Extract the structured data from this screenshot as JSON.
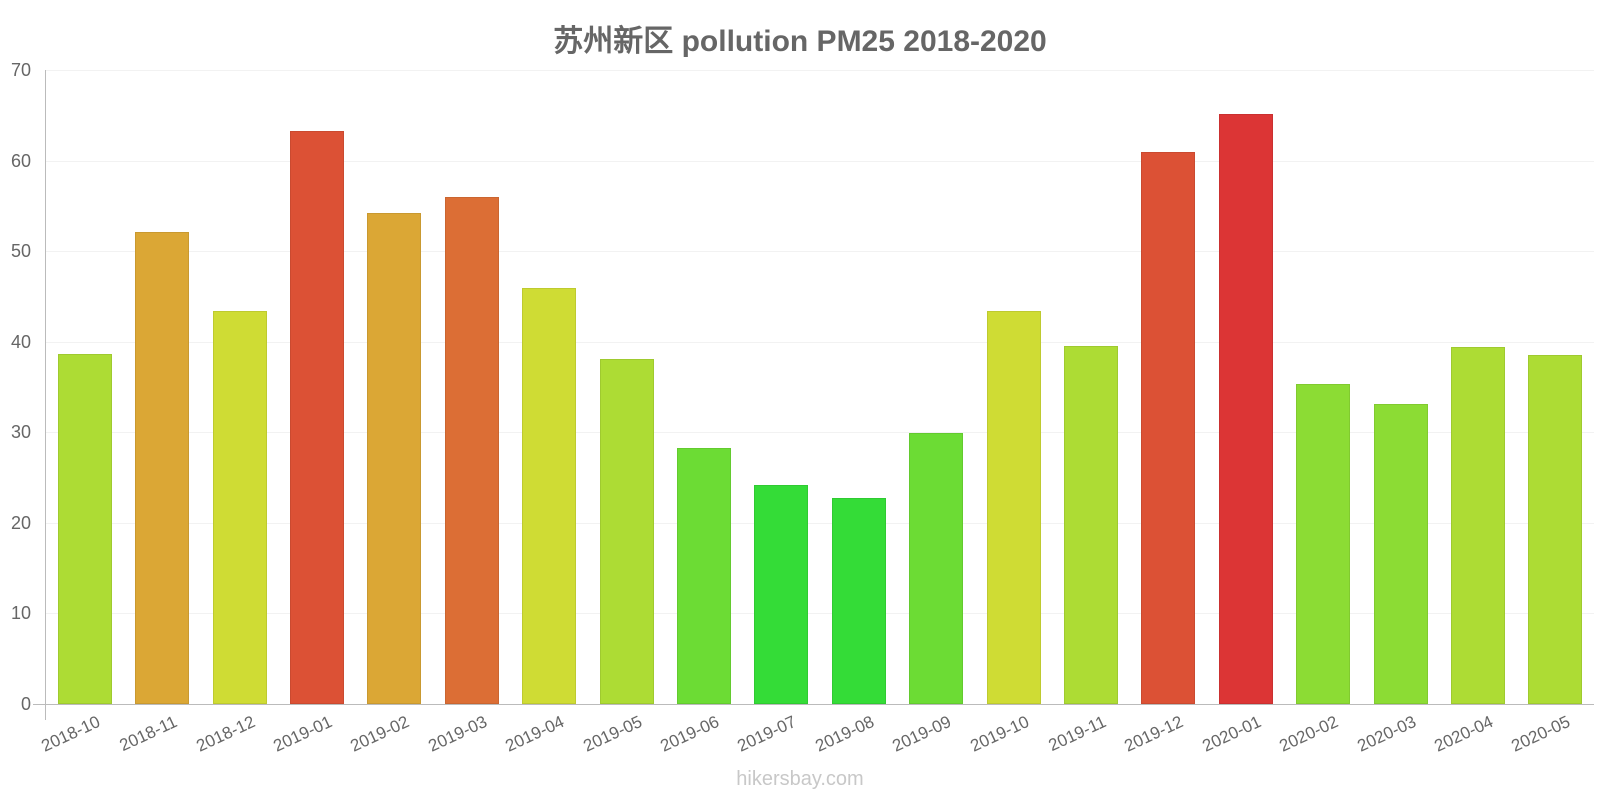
{
  "title": "苏州新区 pollution PM25 2018-2020",
  "footer": "hikersbay.com",
  "y_ticks": [
    "0",
    "10",
    "20",
    "30",
    "40",
    "50",
    "60",
    "70"
  ],
  "chart_data": {
    "type": "bar",
    "title": "苏州新区 pollution PM25 2018-2020",
    "xlabel": "",
    "ylabel": "",
    "ylim": [
      0,
      70
    ],
    "grid": true,
    "legend": "none",
    "categories": [
      "2018-10",
      "2018-11",
      "2018-12",
      "2019-01",
      "2019-02",
      "2019-03",
      "2019-04",
      "2019-05",
      "2019-06",
      "2019-07",
      "2019-08",
      "2019-09",
      "2019-10",
      "2019-11",
      "2019-12",
      "2020-01",
      "2020-02",
      "2020-03",
      "2020-04",
      "2020-05"
    ],
    "values": [
      38.6,
      52.1,
      43.4,
      63.3,
      54.2,
      56.0,
      45.9,
      38.1,
      28.3,
      24.2,
      22.8,
      29.9,
      43.4,
      39.5,
      61.0,
      65.1,
      35.3,
      33.1,
      39.4,
      38.5
    ],
    "colors": [
      "#addc34",
      "#dba735",
      "#cfdc34",
      "#dc5135",
      "#dba735",
      "#dc6e35",
      "#cfdc34",
      "#addc34",
      "#6cdc34",
      "#34dc37",
      "#34dc37",
      "#6cdc34",
      "#cfdc34",
      "#addc34",
      "#dc5135",
      "#dc3535",
      "#8cdc34",
      "#8cdc34",
      "#addc34",
      "#addc34"
    ]
  }
}
